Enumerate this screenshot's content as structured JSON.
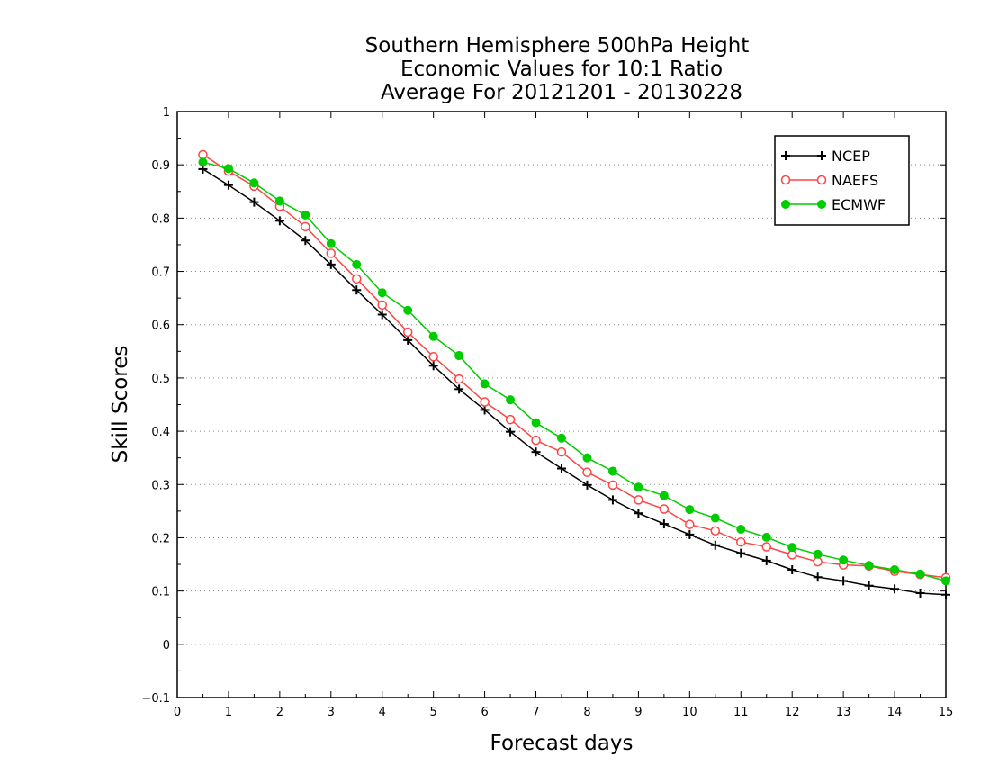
{
  "chart_data": {
    "type": "line",
    "title_lines": [
      "Southern Hemisphere 500hPa Height",
      "Economic Values for 10:1 Ratio",
      "Average For 20121201 - 20130228"
    ],
    "xlabel": "Forecast days",
    "ylabel": "Skill Scores",
    "xlim": [
      0,
      15
    ],
    "ylim": [
      -0.1,
      1
    ],
    "x_ticks": [
      0,
      1,
      2,
      3,
      4,
      5,
      6,
      7,
      8,
      9,
      10,
      11,
      12,
      13,
      14,
      15
    ],
    "x_tick_labels": [
      "0",
      "1",
      "2",
      "3",
      "4",
      "5",
      "6",
      "7",
      "8",
      "9",
      "10",
      "11",
      "12",
      "13",
      "14",
      "15"
    ],
    "y_ticks": [
      -0.1,
      0,
      0.1,
      0.2,
      0.3,
      0.4,
      0.5,
      0.6,
      0.7,
      0.8,
      0.9,
      1
    ],
    "y_tick_labels": [
      "−0.1",
      "0",
      "0.1",
      "0.2",
      "0.3",
      "0.4",
      "0.5",
      "0.6",
      "0.7",
      "0.8",
      "0.9",
      "1"
    ],
    "grid": "horizontal dotted",
    "legend_position": "top-right",
    "x": [
      0.5,
      1,
      1.5,
      2,
      2.5,
      3,
      3.5,
      4,
      4.5,
      5,
      5.5,
      6,
      6.5,
      7,
      7.5,
      8,
      8.5,
      9,
      9.5,
      10,
      10.5,
      11,
      11.5,
      12,
      12.5,
      13,
      13.5,
      14,
      14.5,
      15
    ],
    "series": [
      {
        "name": "NCEP",
        "color": "#000000",
        "marker": "plus",
        "values": [
          0.892,
          0.862,
          0.83,
          0.795,
          0.758,
          0.713,
          0.665,
          0.619,
          0.571,
          0.523,
          0.479,
          0.44,
          0.399,
          0.361,
          0.33,
          0.299,
          0.271,
          0.246,
          0.226,
          0.206,
          0.186,
          0.171,
          0.157,
          0.14,
          0.126,
          0.119,
          0.11,
          0.104,
          0.096,
          0.093
        ]
      },
      {
        "name": "NAEFS",
        "color": "#ff4444",
        "marker": "open-circle",
        "values": [
          0.919,
          0.888,
          0.86,
          0.822,
          0.784,
          0.734,
          0.686,
          0.637,
          0.586,
          0.54,
          0.498,
          0.455,
          0.422,
          0.383,
          0.361,
          0.323,
          0.299,
          0.271,
          0.254,
          0.225,
          0.213,
          0.192,
          0.183,
          0.168,
          0.155,
          0.149,
          0.147,
          0.137,
          0.131,
          0.125
        ]
      },
      {
        "name": "ECMWF",
        "color": "#00cc00",
        "marker": "filled-circle",
        "values": [
          0.905,
          0.893,
          0.866,
          0.832,
          0.806,
          0.752,
          0.713,
          0.66,
          0.627,
          0.578,
          0.542,
          0.489,
          0.459,
          0.416,
          0.387,
          0.35,
          0.325,
          0.295,
          0.279,
          0.253,
          0.237,
          0.216,
          0.201,
          0.182,
          0.169,
          0.158,
          0.148,
          0.14,
          0.132,
          0.119
        ]
      }
    ]
  }
}
